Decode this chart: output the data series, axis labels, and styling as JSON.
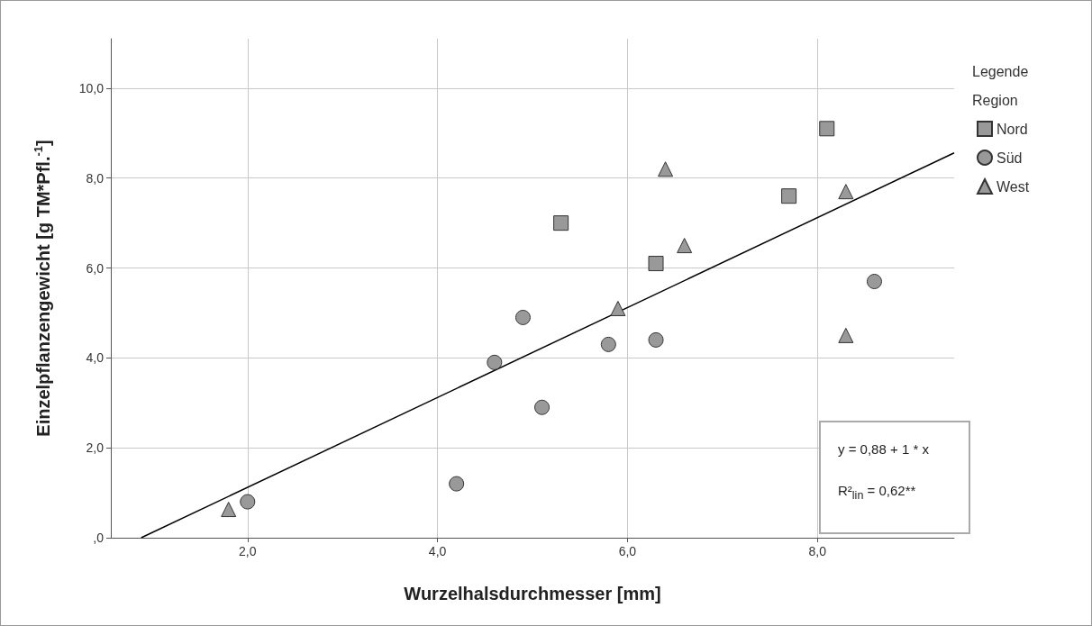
{
  "chart_data": {
    "type": "scatter",
    "xlabel": "Wurzelhalsdurchmesser [mm]",
    "ylabel": "Einzelpflanzengewicht [g TM*Pfl.$^{-1}$]",
    "legend_title": "Legende\nRegion",
    "xlim": [
      0.56,
      9.44
    ],
    "xticks": [
      {
        "value": 2,
        "label": "2,0"
      },
      {
        "value": 4,
        "label": "4,0"
      },
      {
        "value": 6,
        "label": "6,0"
      },
      {
        "value": 8,
        "label": "8,0"
      }
    ],
    "ylim": [
      0,
      11.1
    ],
    "yticks": [
      {
        "value": 0,
        "label": ",0"
      },
      {
        "value": 2,
        "label": "2,0"
      },
      {
        "value": 4,
        "label": "4,0"
      },
      {
        "value": 6,
        "label": "6,0"
      },
      {
        "value": 8,
        "label": "8,0"
      },
      {
        "value": 10,
        "label": "10,0"
      }
    ],
    "grid": true,
    "legend": "right",
    "series": [
      {
        "name": "Nord",
        "marker": "square",
        "color": "#999999",
        "x": [
          5.3,
          6.3,
          7.7,
          8.1
        ],
        "values": [
          7.0,
          6.1,
          7.6,
          9.1
        ]
      },
      {
        "name": "Süd",
        "marker": "circle",
        "color": "#999999",
        "x": [
          2.0,
          4.2,
          4.6,
          4.9,
          5.1,
          5.8,
          6.3,
          8.6
        ],
        "values": [
          0.8,
          1.2,
          3.9,
          4.9,
          2.9,
          4.3,
          4.4,
          5.7
        ]
      },
      {
        "name": "West",
        "marker": "triangle",
        "color": "#999999",
        "x": [
          1.8,
          5.9,
          6.4,
          6.6,
          8.3,
          8.3
        ],
        "values": [
          0.63,
          5.1,
          8.2,
          6.5,
          7.7,
          4.5
        ]
      },
      {
        "type": "line",
        "color": "#000000",
        "marker": "none",
        "x": [
          0.88,
          9.44
        ],
        "values": [
          0,
          8.56
        ]
      }
    ],
    "annotations": [
      "y = 0,88 + 1 * x",
      "R²$_{lin}$ = 0,62**"
    ]
  }
}
